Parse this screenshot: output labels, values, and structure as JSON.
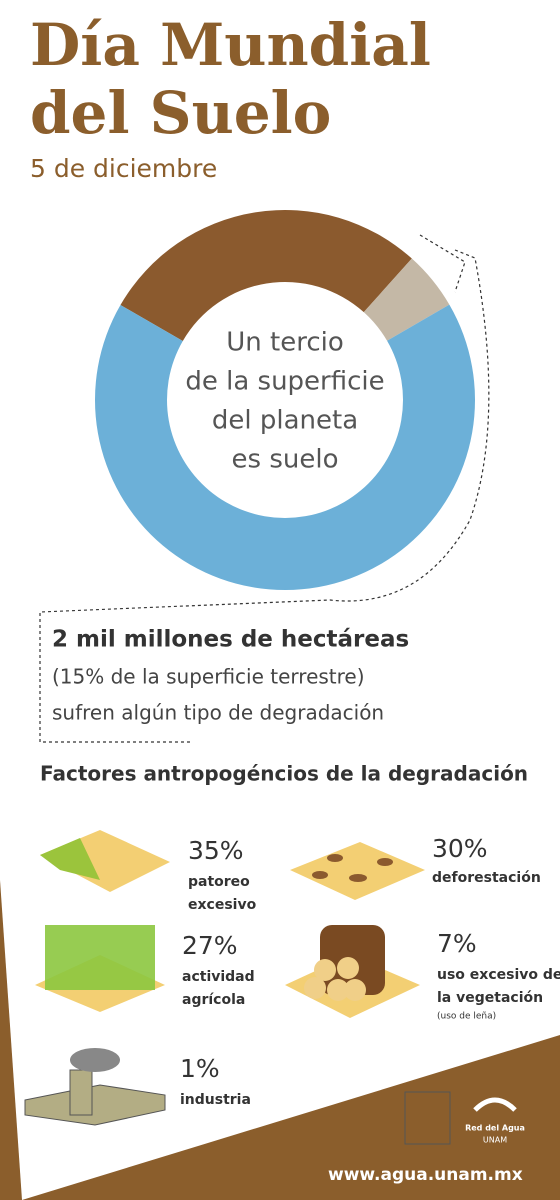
{
  "header": {
    "title_lines": [
      "Día Mundial",
      "del Suelo"
    ],
    "date": "5 de diciembre"
  },
  "donut": {
    "center_text": [
      "Un tercio",
      "de la superficie",
      "del planeta",
      "es suelo"
    ],
    "segments": [
      {
        "color": "#8b5a2e",
        "value": 28.3
      },
      {
        "color": "#c4b8a6",
        "value": 5
      },
      {
        "color": "#6cb0d8",
        "value": 66.7
      }
    ]
  },
  "callout": {
    "headline": "2 mil millones de hectáreas",
    "lines": [
      "(15% de la superficie terrestre)",
      "sufren algún tipo de degradación"
    ]
  },
  "factors": {
    "title": "Factores antropogéncios de la degradación",
    "items": [
      {
        "percent": "35%",
        "label": [
          "patoreo",
          "excesivo"
        ]
      },
      {
        "percent": "30%",
        "label": [
          "deforestación"
        ]
      },
      {
        "percent": "27%",
        "label": [
          "actividad",
          "agrícola"
        ]
      },
      {
        "percent": "7%",
        "label": [
          "uso excesivo de",
          "la vegetación"
        ],
        "note": "(uso de leña)"
      },
      {
        "percent": "1%",
        "label": [
          "industria"
        ]
      }
    ]
  },
  "footer": {
    "logo_texts": [
      "Red del Agua",
      "UNAM"
    ],
    "url": "www.agua.unam.mx"
  }
}
